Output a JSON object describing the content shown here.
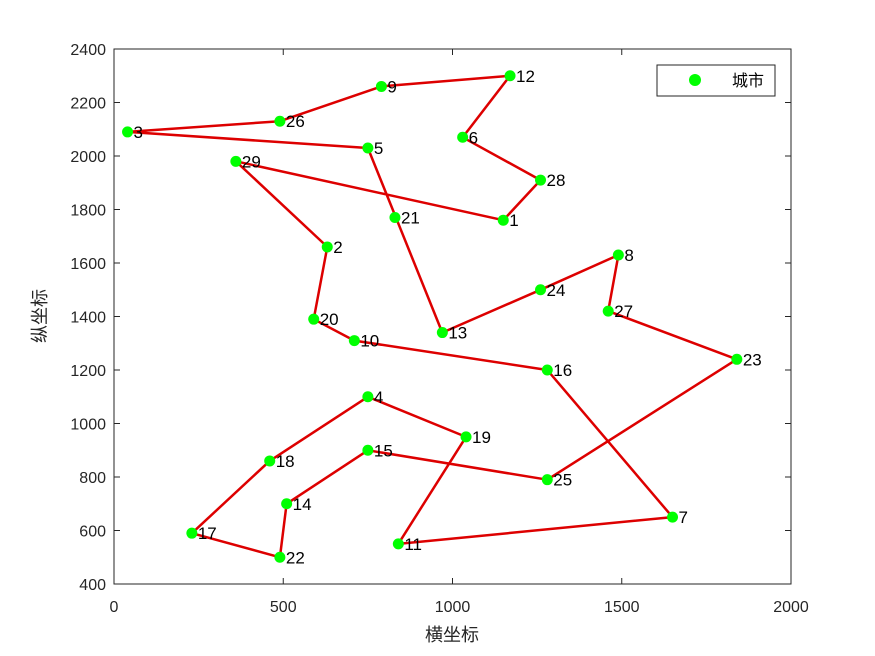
{
  "chart_data": {
    "type": "scatter",
    "xlabel": "横坐标",
    "ylabel": "纵坐标",
    "xlim": [
      0,
      2000
    ],
    "ylim": [
      400,
      2400
    ],
    "x_ticks": [
      0,
      500,
      1000,
      1500,
      2000
    ],
    "y_ticks": [
      400,
      600,
      800,
      1000,
      1200,
      1400,
      1600,
      1800,
      2000,
      2200,
      2400
    ],
    "grid": false,
    "legend": {
      "position": "top-right",
      "entries": [
        "城市"
      ]
    },
    "series": [
      {
        "name": "城市",
        "marker": "circle",
        "color": "#00ff00",
        "points": [
          {
            "id": "1",
            "x": 1150,
            "y": 1760
          },
          {
            "id": "2",
            "x": 630,
            "y": 1660
          },
          {
            "id": "3",
            "x": 40,
            "y": 2090
          },
          {
            "id": "4",
            "x": 750,
            "y": 1100
          },
          {
            "id": "5",
            "x": 750,
            "y": 2030
          },
          {
            "id": "6",
            "x": 1030,
            "y": 2070
          },
          {
            "id": "7",
            "x": 1650,
            "y": 650
          },
          {
            "id": "8",
            "x": 1490,
            "y": 1630
          },
          {
            "id": "9",
            "x": 790,
            "y": 2260
          },
          {
            "id": "10",
            "x": 710,
            "y": 1310
          },
          {
            "id": "11",
            "x": 840,
            "y": 550
          },
          {
            "id": "12",
            "x": 1170,
            "y": 2300
          },
          {
            "id": "13",
            "x": 970,
            "y": 1340
          },
          {
            "id": "14",
            "x": 510,
            "y": 700
          },
          {
            "id": "15",
            "x": 750,
            "y": 900
          },
          {
            "id": "16",
            "x": 1280,
            "y": 1200
          },
          {
            "id": "17",
            "x": 230,
            "y": 590
          },
          {
            "id": "18",
            "x": 460,
            "y": 860
          },
          {
            "id": "19",
            "x": 1040,
            "y": 950
          },
          {
            "id": "20",
            "x": 590,
            "y": 1390
          },
          {
            "id": "21",
            "x": 830,
            "y": 1770
          },
          {
            "id": "22",
            "x": 490,
            "y": 500
          },
          {
            "id": "23",
            "x": 1840,
            "y": 1240
          },
          {
            "id": "24",
            "x": 1260,
            "y": 1500
          },
          {
            "id": "25",
            "x": 1280,
            "y": 790
          },
          {
            "id": "26",
            "x": 490,
            "y": 2130
          },
          {
            "id": "27",
            "x": 1460,
            "y": 1420
          },
          {
            "id": "28",
            "x": 1260,
            "y": 1910
          },
          {
            "id": "29",
            "x": 360,
            "y": 1980
          }
        ]
      },
      {
        "type": "line",
        "color": "#dd0000",
        "route": [
          "1",
          "29",
          "2",
          "20",
          "10",
          "16",
          "7",
          "11",
          "19",
          "4",
          "18",
          "17",
          "22",
          "14",
          "15",
          "25",
          "23",
          "27",
          "8",
          "24",
          "13",
          "5",
          "3",
          "26",
          "9",
          "12",
          "6",
          "28",
          "1"
        ]
      }
    ]
  }
}
